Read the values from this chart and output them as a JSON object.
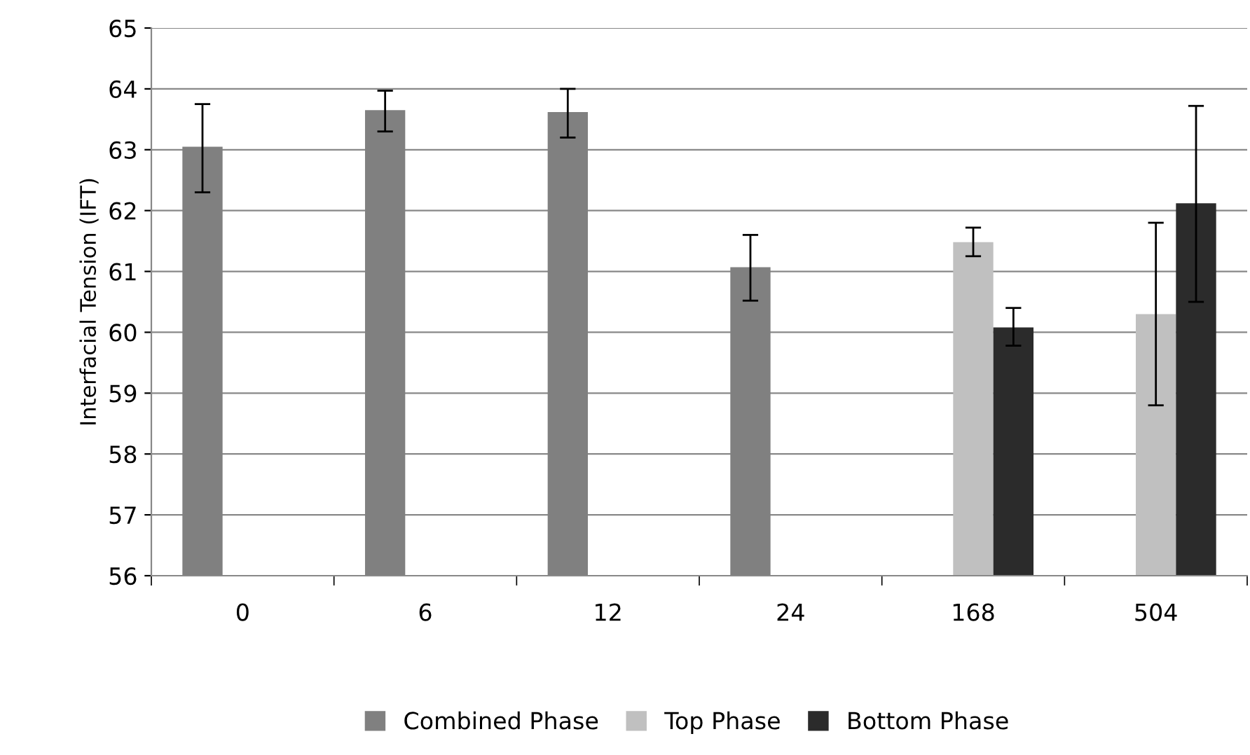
{
  "chart_data": {
    "type": "bar",
    "ylabel": "Interfacial Tension (IFT)",
    "categories": [
      "0",
      "6",
      "12",
      "24",
      "168",
      "504"
    ],
    "series": [
      {
        "name": "Combined Phase",
        "color": "#808080",
        "values": [
          63.05,
          63.65,
          63.62,
          61.07,
          null,
          null
        ],
        "errors": [
          [
            62.3,
            63.75
          ],
          [
            63.3,
            63.97
          ],
          [
            63.2,
            64.0
          ],
          [
            60.52,
            61.6
          ],
          null,
          null
        ]
      },
      {
        "name": "Top Phase",
        "color": "#c0c0c0",
        "values": [
          null,
          null,
          null,
          null,
          61.48,
          60.3
        ],
        "errors": [
          null,
          null,
          null,
          null,
          [
            61.25,
            61.72
          ],
          [
            58.8,
            61.8
          ]
        ]
      },
      {
        "name": "Bottom Phase",
        "color": "#2b2b2b",
        "values": [
          null,
          null,
          null,
          null,
          60.08,
          62.12
        ],
        "errors": [
          null,
          null,
          null,
          null,
          [
            59.78,
            60.4
          ],
          [
            60.5,
            63.72
          ]
        ]
      }
    ],
    "ylim": [
      56,
      65
    ],
    "yticks": [
      56,
      57,
      58,
      59,
      60,
      61,
      62,
      63,
      64,
      65
    ],
    "grid": "y",
    "legend": "bottom"
  }
}
